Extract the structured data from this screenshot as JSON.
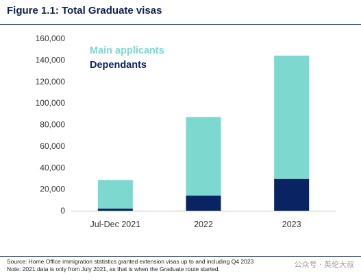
{
  "figure": {
    "title": "Figure 1.1: Total Graduate visas"
  },
  "chart_data": {
    "type": "bar",
    "stacked": true,
    "categories": [
      "Jul-Dec 2021",
      "2022",
      "2023"
    ],
    "series": [
      {
        "name": "Dependants",
        "values": [
          2000,
          14000,
          29500
        ],
        "color": "#0a2463"
      },
      {
        "name": "Main applicants",
        "values": [
          26500,
          73000,
          114500
        ],
        "color": "#7dd8cf"
      }
    ],
    "ylim": [
      0,
      160000
    ],
    "yticks": [
      "0",
      "20,000",
      "40,000",
      "60,000",
      "80,000",
      "100,000",
      "120,000",
      "140,000",
      "160,000"
    ],
    "ytick_values": [
      0,
      20000,
      40000,
      60000,
      80000,
      100000,
      120000,
      140000,
      160000
    ],
    "legend": {
      "placement": "top-left",
      "entries": [
        "Main applicants",
        "Dependants"
      ]
    },
    "grid": false,
    "xlabel": "",
    "ylabel": ""
  },
  "footnotes": {
    "source": "Source: Home Office immigration statistics granted extension visas up to and including Q4 2023",
    "note": "Note: 2021 data is only from July 2021, as that is when the Graduate route started."
  },
  "watermark": {
    "text": "公众号 · 英伦大叔"
  }
}
